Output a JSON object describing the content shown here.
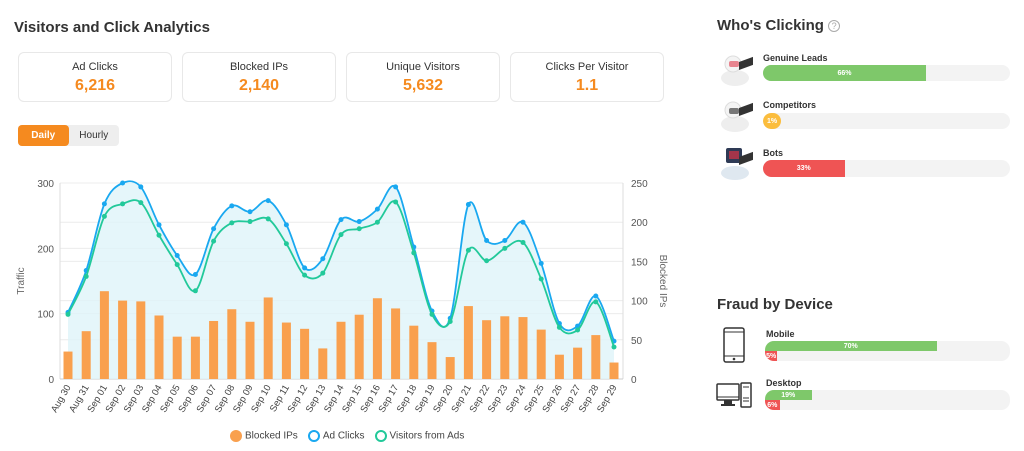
{
  "title": "Visitors and Click Analytics",
  "stats": [
    {
      "label": "Ad Clicks",
      "value": "6,216"
    },
    {
      "label": "Blocked IPs",
      "value": "2,140"
    },
    {
      "label": "Unique Visitors",
      "value": "5,632"
    },
    {
      "label": "Clicks Per Visitor",
      "value": "1.1"
    }
  ],
  "toggle": {
    "daily": "Daily",
    "hourly": "Hourly",
    "selected": "Daily"
  },
  "chart_data": {
    "type": "line+bar",
    "categories": [
      "Aug 30",
      "Aug 31",
      "Sep 01",
      "Sep 02",
      "Sep 03",
      "Sep 04",
      "Sep 05",
      "Sep 06",
      "Sep 07",
      "Sep 08",
      "Sep 09",
      "Sep 10",
      "Sep 11",
      "Sep 12",
      "Sep 13",
      "Sep 14",
      "Sep 15",
      "Sep 16",
      "Sep 17",
      "Sep 18",
      "Sep 19",
      "Sep 20",
      "Sep 21",
      "Sep 22",
      "Sep 23",
      "Sep 24",
      "Sep 25",
      "Sep 26",
      "Sep 27",
      "Sep 28",
      "Sep 29"
    ],
    "ylabel": "Traffic",
    "y2label": "Blocked IPs",
    "ylim": [
      0,
      300
    ],
    "yticks": [
      "0",
      "100",
      "200",
      "300"
    ],
    "y2lim": [
      0,
      250
    ],
    "y2ticks": [
      "0",
      "50",
      "100",
      "150",
      "200",
      "250"
    ],
    "grid": true,
    "legend_position": "bottom",
    "series": [
      {
        "name": "Blocked IPs",
        "type": "bar",
        "axis": "right",
        "color": "#f9a04e",
        "values": [
          35,
          61,
          112,
          100,
          99,
          81,
          54,
          54,
          74,
          89,
          73,
          104,
          72,
          64,
          39,
          73,
          82,
          103,
          90,
          68,
          47,
          28,
          93,
          75,
          80,
          79,
          63,
          31,
          40,
          56,
          21
        ]
      },
      {
        "name": "Ad Clicks",
        "type": "line",
        "axis": "left",
        "color": "#19a8f0",
        "values": [
          102,
          166,
          268,
          300,
          294,
          236,
          189,
          160,
          230,
          265,
          256,
          273,
          236,
          170,
          184,
          244,
          241,
          260,
          294,
          202,
          104,
          93,
          267,
          212,
          212,
          240,
          177,
          85,
          81,
          127,
          58
        ]
      },
      {
        "name": "Visitors from Ads",
        "type": "line",
        "axis": "left",
        "color": "#22c99a",
        "values": [
          99,
          157,
          249,
          268,
          270,
          220,
          175,
          135,
          211,
          239,
          241,
          245,
          207,
          159,
          162,
          221,
          230,
          240,
          271,
          193,
          99,
          88,
          197,
          181,
          200,
          209,
          153,
          79,
          75,
          118,
          49
        ]
      }
    ]
  },
  "who": {
    "title": "Who's Clicking",
    "items": [
      {
        "label": "Genuine Leads",
        "pct": "66%",
        "value": 66,
        "color": "#7ec86a"
      },
      {
        "label": "Competitors",
        "pct": "1%",
        "value": 1,
        "color": "#fbbd3d"
      },
      {
        "label": "Bots",
        "pct": "33%",
        "value": 33,
        "color": "#ef5454"
      }
    ]
  },
  "fraud": {
    "title": "Fraud by Device",
    "items": [
      {
        "label": "Mobile",
        "pct": "70%",
        "value": 70,
        "fraud_pct": "5%",
        "fraud_value": 5
      },
      {
        "label": "Desktop",
        "pct": "19%",
        "value": 19,
        "fraud_pct": "6%",
        "fraud_value": 6
      }
    ]
  }
}
